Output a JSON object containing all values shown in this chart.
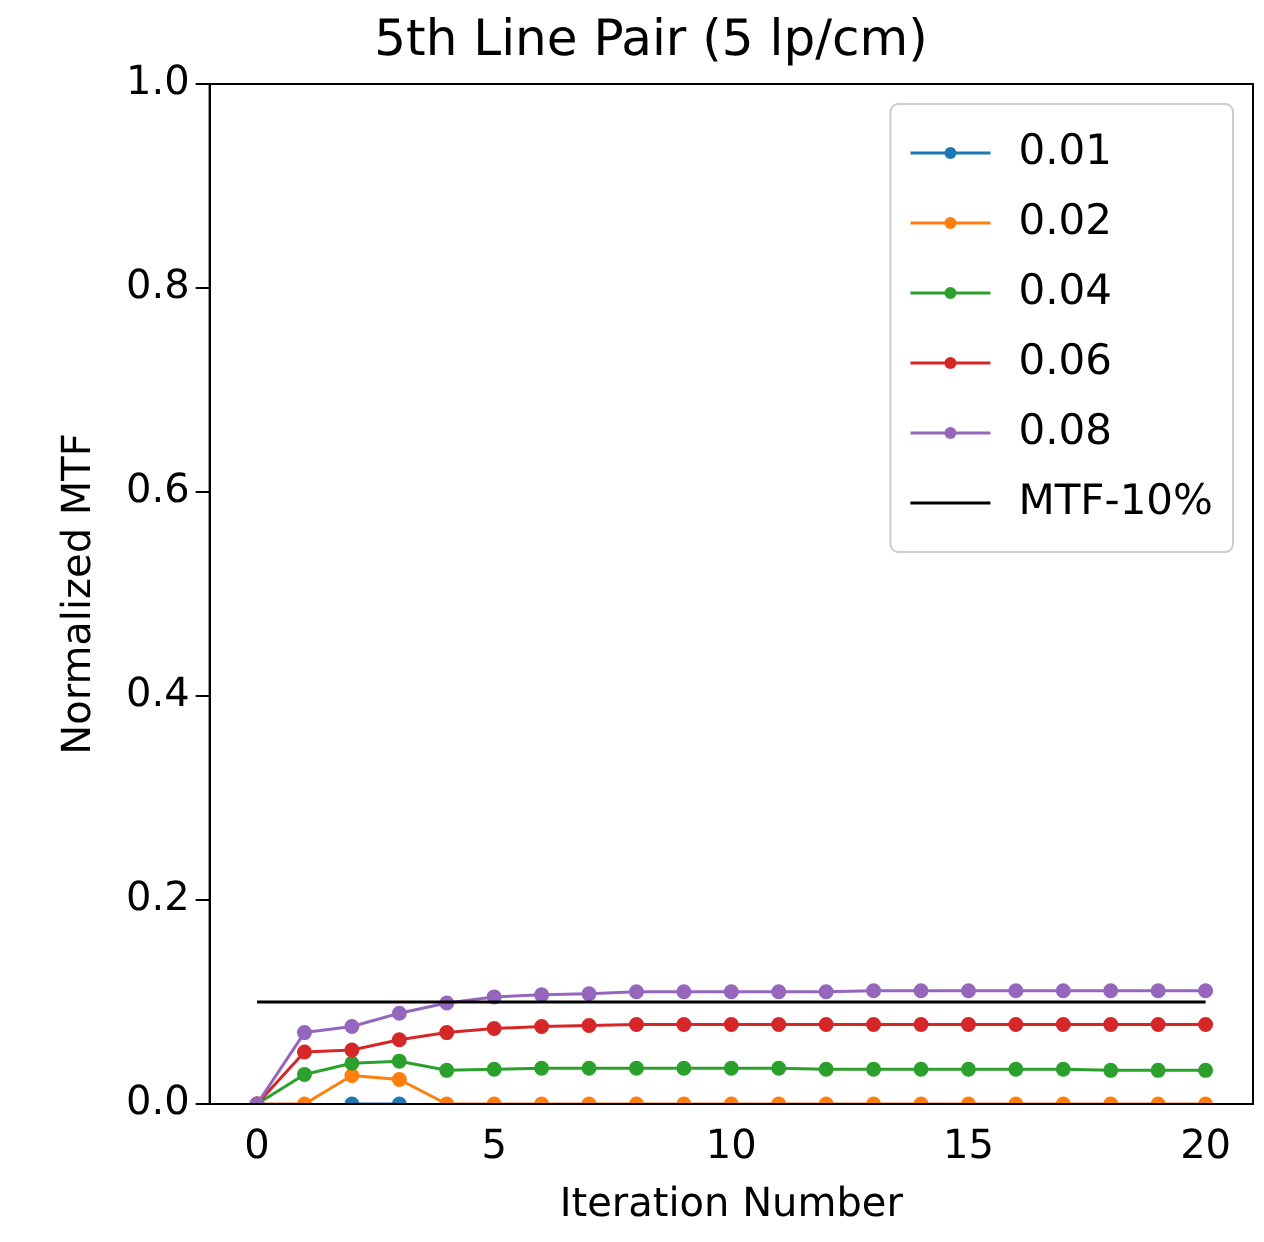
{
  "chart_data": {
    "type": "line",
    "title": "5th Line Pair (5 lp/cm)",
    "xlabel": "Iteration Number",
    "ylabel": "Normalized MTF",
    "x": [
      0,
      1,
      2,
      3,
      4,
      5,
      6,
      7,
      8,
      9,
      10,
      11,
      12,
      13,
      14,
      15,
      16,
      17,
      18,
      19,
      20
    ],
    "series": [
      {
        "name": "0.01",
        "color": "#1f77b4",
        "values": [
          null,
          null,
          0,
          0,
          null,
          null,
          null,
          null,
          null,
          null,
          null,
          null,
          null,
          null,
          null,
          null,
          null,
          null,
          null,
          null,
          null
        ]
      },
      {
        "name": "0.02",
        "color": "#ff7f0e",
        "values": [
          0,
          0,
          0.028,
          0.024,
          0,
          0,
          0,
          0,
          0,
          0,
          0,
          0,
          0,
          0,
          0,
          0,
          0,
          0,
          0,
          0,
          0
        ]
      },
      {
        "name": "0.04",
        "color": "#2ca02c",
        "values": [
          0,
          0.029,
          0.04,
          0.042,
          0.033,
          0.034,
          0.035,
          0.035,
          0.035,
          0.035,
          0.035,
          0.035,
          0.034,
          0.034,
          0.034,
          0.034,
          0.034,
          0.034,
          0.033,
          0.033,
          0.033
        ]
      },
      {
        "name": "0.06",
        "color": "#d62728",
        "values": [
          0,
          0.051,
          0.053,
          0.063,
          0.07,
          0.074,
          0.076,
          0.077,
          0.078,
          0.078,
          0.078,
          0.078,
          0.078,
          0.078,
          0.078,
          0.078,
          0.078,
          0.078,
          0.078,
          0.078,
          0.078
        ]
      },
      {
        "name": "0.08",
        "color": "#9467bd",
        "values": [
          0,
          0.07,
          0.076,
          0.089,
          0.099,
          0.105,
          0.107,
          0.108,
          0.11,
          0.11,
          0.11,
          0.11,
          0.11,
          0.111,
          0.111,
          0.111,
          0.111,
          0.111,
          0.111,
          0.111,
          0.111
        ]
      },
      {
        "name": "MTF-10%",
        "color": "#000000",
        "type": "line",
        "marker": "none",
        "x": [
          0,
          20
        ],
        "values": [
          0.1,
          0.1
        ]
      }
    ],
    "xlim": [
      -1,
      21
    ],
    "xticks": [
      0,
      5,
      10,
      15,
      20
    ],
    "ylim": [
      0,
      1
    ],
    "yticks": [
      {
        "value": 0,
        "label": "0.0"
      },
      0.2,
      0.4,
      0.6,
      0.8,
      {
        "value": 1,
        "label": "1.0"
      }
    ],
    "grid": false,
    "legend": "top right",
    "marker": "circle",
    "line_style": "solid"
  }
}
